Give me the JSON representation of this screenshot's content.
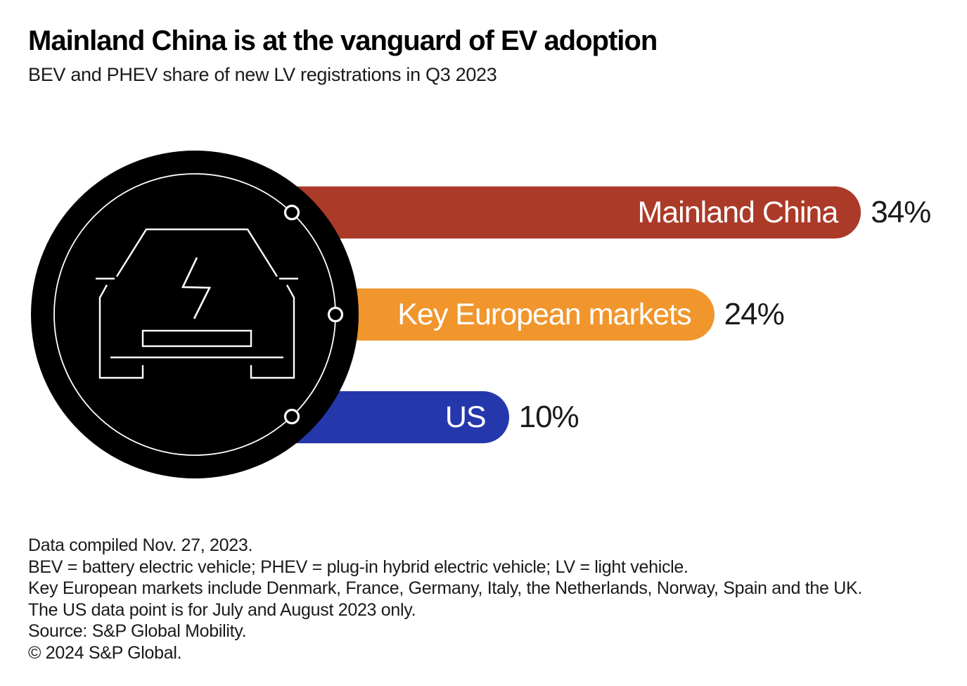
{
  "chart_data": {
    "type": "bar",
    "orientation": "horizontal",
    "title": "Mainland China is at the vanguard of EV adoption",
    "subtitle": "BEV and PHEV share of new LV registrations in Q3 2023",
    "categories": [
      "Mainland China",
      "Key European markets",
      "US"
    ],
    "values": [
      34,
      24,
      10
    ],
    "value_labels": [
      "34%",
      "24%",
      "10%"
    ],
    "unit": "percent of new LV registrations",
    "bar_colors": [
      "#AC3A28",
      "#F0962D",
      "#2438AC"
    ],
    "category_label_color": "#FFFFFF",
    "value_label_color": "#1A1A1A",
    "axes": "hidden",
    "gridlines": "off",
    "legend": "none",
    "value_range": [
      0,
      34
    ]
  },
  "icon": {
    "name": "electric-car-badge",
    "background_color": "#000000",
    "line_color": "#FFFFFF"
  },
  "footnotes": [
    "Data compiled Nov. 27, 2023.",
    "BEV = battery electric vehicle; PHEV = plug-in hybrid electric vehicle; LV = light vehicle.",
    "Key European markets include Denmark, France, Germany, Italy, the Netherlands, Norway, Spain and the UK.",
    "The US data point is for July and August 2023 only.",
    "Source: S&P Global Mobility.",
    "© 2024 S&P Global."
  ]
}
